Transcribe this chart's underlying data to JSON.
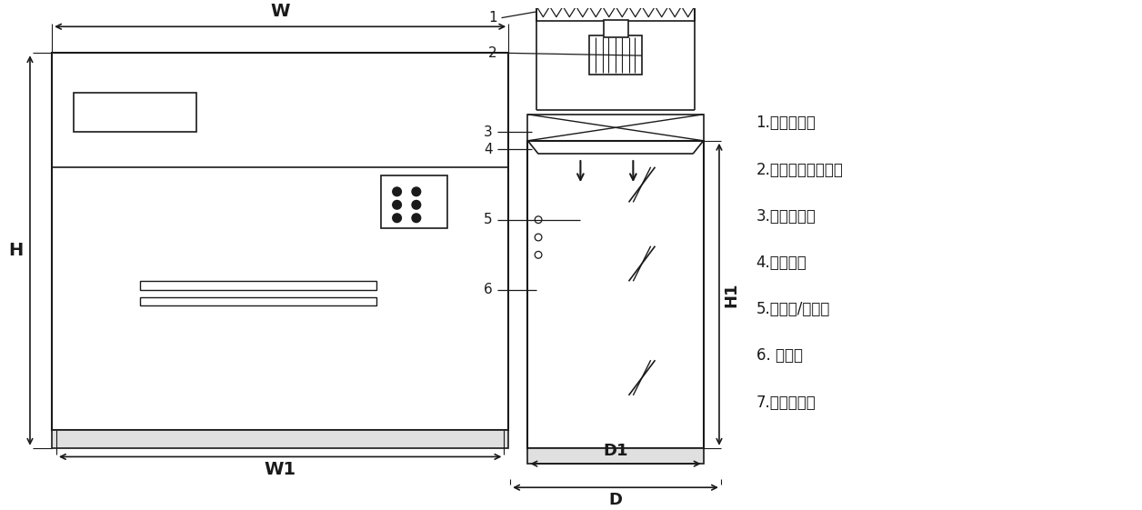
{
  "bg_color": "#ffffff",
  "line_color": "#1a1a1a",
  "arrow_color": "#1a1a1a",
  "legend_items": [
    "1.初效过滤器",
    "2.可变风量送风机组",
    "3.高效过滤器",
    "4.操作面板",
    "5.荚光灯/紫外灯",
    "6. 侧玻璃",
    "7.不锈钉台面"
  ]
}
